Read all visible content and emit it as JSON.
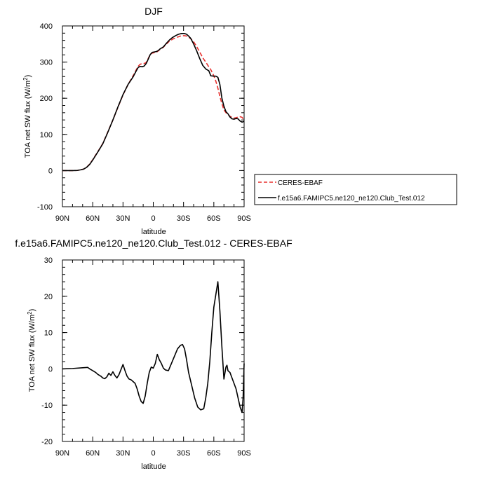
{
  "chart_data": [
    {
      "type": "line",
      "title": "DJF",
      "xlabel": "latitude",
      "ylabel": "TOA net SW flux (W/m²)",
      "ylabel_main": "TOA net SW flux (W/m",
      "ylabel_sup": "2",
      "ylabel_end": ")",
      "xlim": [
        90,
        -90
      ],
      "ylim": [
        -100,
        400
      ],
      "x_ticks": [
        90,
        60,
        30,
        0,
        -30,
        -60,
        -90
      ],
      "x_tick_labels": [
        "90N",
        "60N",
        "30N",
        "0",
        "30S",
        "60S",
        "90S"
      ],
      "y_ticks": [
        -100,
        0,
        100,
        200,
        300,
        400
      ],
      "y_tick_labels": [
        "-100",
        "0",
        "100",
        "200",
        "300",
        "400"
      ],
      "grid": false,
      "legend": "right",
      "series": [
        {
          "name": "CERES-EBAF",
          "color": "#e8302e",
          "dash": true,
          "x": [
            90,
            85,
            80,
            75,
            72,
            69,
            66,
            63,
            60,
            55,
            50,
            45,
            40,
            35,
            30,
            25,
            20,
            17,
            15,
            13,
            11,
            9,
            7,
            5,
            3,
            1,
            -1,
            -3,
            -5,
            -7,
            -10,
            -13,
            -16,
            -19,
            -22,
            -25,
            -28,
            -31,
            -33,
            -35,
            -37,
            -40,
            -43,
            -46,
            -49,
            -52,
            -55,
            -57,
            -60,
            -62,
            -64,
            -66,
            -68,
            -70,
            -72,
            -74,
            -76,
            -78,
            -80,
            -82,
            -84,
            -86,
            -88,
            -90
          ],
          "values": [
            0,
            0,
            0,
            0.5,
            2,
            4,
            9,
            18,
            30,
            52,
            75,
            107,
            140,
            175,
            209,
            238,
            262,
            278,
            288,
            294,
            296,
            296,
            299,
            310,
            321,
            325,
            326,
            327,
            331,
            336,
            341,
            350,
            358,
            363,
            367,
            370,
            373,
            373,
            372,
            369,
            365,
            356,
            343,
            328,
            312,
            300,
            287,
            279,
            262,
            247,
            228,
            205,
            185,
            168,
            160,
            155,
            150,
            147,
            145,
            146,
            148,
            149,
            147,
            140
          ]
        },
        {
          "name": "f.e15a6.FAMIPC5.ne120_ne120.Club_Test.012",
          "color": "#000000",
          "dash": false,
          "x": [
            90,
            85,
            80,
            75,
            72,
            69,
            66,
            63,
            60,
            55,
            50,
            45,
            40,
            35,
            30,
            25,
            20,
            17,
            15,
            13,
            11,
            9,
            7,
            5,
            3,
            1,
            -1,
            -3,
            -5,
            -7,
            -10,
            -13,
            -16,
            -19,
            -22,
            -25,
            -28,
            -31,
            -33,
            -35,
            -37,
            -40,
            -43,
            -46,
            -49,
            -52,
            -55,
            -57,
            -60,
            -62,
            -64,
            -66,
            -68,
            -70,
            -72,
            -74,
            -76,
            -78,
            -80,
            -82,
            -84,
            -86,
            -88,
            -90
          ],
          "values": [
            0,
            0,
            0,
            0.5,
            2,
            4,
            9,
            17,
            29,
            51,
            74,
            106,
            140,
            176,
            210,
            238,
            259,
            275,
            285,
            288,
            287,
            289,
            296,
            308,
            321,
            327,
            328,
            329,
            332,
            337,
            342,
            352,
            361,
            368,
            373,
            377,
            379,
            379,
            377,
            372,
            366,
            350,
            331,
            310,
            291,
            281,
            276,
            262,
            261,
            261,
            258,
            238,
            200,
            178,
            163,
            157,
            148,
            143,
            142,
            144,
            143,
            137,
            134,
            136
          ]
        }
      ]
    },
    {
      "type": "line",
      "title": "f.e15a6.FAMIPC5.ne120_ne120.Club_Test.012 - CERES-EBAF",
      "xlabel": "latitude",
      "ylabel": "TOA net SW flux (W/m²)",
      "ylabel_main": "TOA net SW flux (W/m",
      "ylabel_sup": "2",
      "ylabel_end": ")",
      "xlim": [
        90,
        -90
      ],
      "ylim": [
        -20,
        30
      ],
      "x_ticks": [
        90,
        60,
        30,
        0,
        -30,
        -60,
        -90
      ],
      "x_tick_labels": [
        "90N",
        "60N",
        "30N",
        "0",
        "30S",
        "60S",
        "90S"
      ],
      "y_ticks": [
        -20,
        -10,
        0,
        10,
        20,
        30
      ],
      "y_tick_labels": [
        "-20",
        "-10",
        "0",
        "10",
        "20",
        "30"
      ],
      "grid": false,
      "series": [
        {
          "color": "#000000",
          "dash": false,
          "x": [
            90,
            80,
            70,
            65,
            63,
            60,
            57,
            55,
            52,
            50,
            48,
            46,
            44,
            42,
            40,
            38,
            36,
            34,
            32,
            30,
            28,
            26,
            24,
            22,
            20,
            18,
            16,
            14,
            12,
            10,
            8,
            6,
            4,
            2,
            0,
            -2,
            -4,
            -6,
            -8,
            -10,
            -12,
            -15,
            -18,
            -21,
            -24,
            -27,
            -29,
            -31,
            -33,
            -35,
            -38,
            -41,
            -44,
            -47,
            -50,
            -52,
            -54,
            -56,
            -58,
            -60,
            -62,
            -64,
            -66,
            -68,
            -70,
            -72,
            -73,
            -74,
            -76,
            -78,
            -80,
            -82,
            -84,
            -86,
            -88,
            -89,
            -90
          ],
          "values": [
            0,
            0.1,
            0.3,
            0.4,
            0,
            -0.5,
            -1,
            -1.5,
            -2,
            -2.5,
            -2.7,
            -2.2,
            -1.2,
            -1.8,
            -0.8,
            -1.8,
            -2.5,
            -1.6,
            -0.2,
            1.2,
            -0.5,
            -2,
            -2.8,
            -3,
            -3.5,
            -4,
            -5.5,
            -7.5,
            -9,
            -9.5,
            -7.5,
            -4,
            -1,
            0.5,
            0.2,
            1.5,
            4,
            2.5,
            1.5,
            0.2,
            -0.3,
            -0.5,
            1.5,
            3.5,
            5.5,
            6.5,
            6.7,
            5.5,
            2.5,
            -1,
            -4.5,
            -8,
            -10.5,
            -11.3,
            -11,
            -8,
            -4,
            2,
            10,
            17,
            20.5,
            24,
            16,
            6,
            -2.8,
            0.5,
            1,
            -0.5,
            -1,
            -2.5,
            -4,
            -5.5,
            -8,
            -10.5,
            -12,
            -8,
            1.5
          ]
        }
      ]
    }
  ]
}
